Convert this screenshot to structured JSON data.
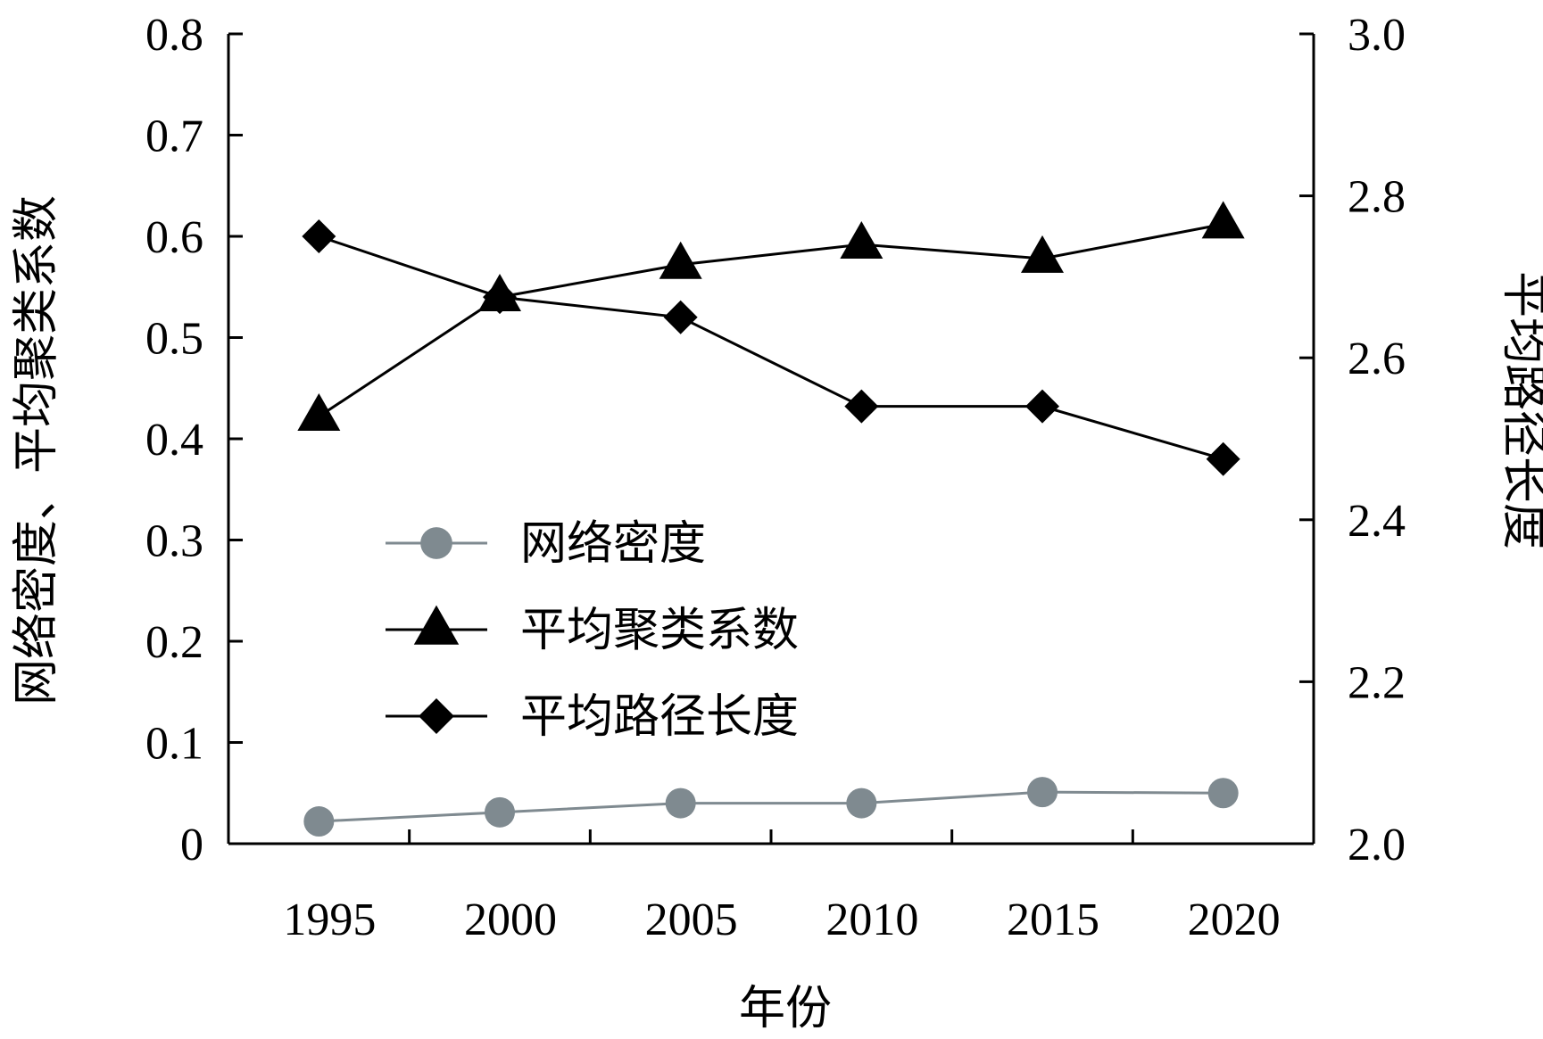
{
  "chart_data": {
    "type": "line",
    "xlabel": "年份",
    "ylabel_left": "网络密度、平均聚类系数",
    "ylabel_right": "平均路径长度",
    "categories": [
      "1995",
      "2000",
      "2005",
      "2010",
      "2015",
      "2020"
    ],
    "x_ticks": [
      "1995",
      "2000",
      "2005",
      "2010",
      "2015",
      "2020"
    ],
    "y_left_ticks": [
      "0",
      "0.1",
      "0.2",
      "0.3",
      "0.4",
      "0.5",
      "0.6",
      "0.7",
      "0.8"
    ],
    "y_right_ticks": [
      "2.0",
      "2.2",
      "2.4",
      "2.6",
      "2.8",
      "3.0"
    ],
    "ylim_left": [
      0,
      0.8
    ],
    "ylim_right": [
      2.0,
      3.0
    ],
    "grid": false,
    "legend_position": "center-left",
    "series": [
      {
        "name": "网络密度",
        "axis": "left",
        "marker": "circle",
        "color": "#7f8a90",
        "values": [
          0.022,
          0.031,
          0.04,
          0.04,
          0.051,
          0.05
        ]
      },
      {
        "name": "平均聚类系数",
        "axis": "left",
        "marker": "triangle",
        "color": "#000000",
        "values": [
          0.422,
          0.54,
          0.572,
          0.592,
          0.578,
          0.612
        ]
      },
      {
        "name": "平均路径长度",
        "axis": "right",
        "marker": "diamond",
        "color": "#000000",
        "values": [
          2.75,
          2.675,
          2.65,
          2.54,
          2.54,
          2.475
        ]
      }
    ]
  }
}
